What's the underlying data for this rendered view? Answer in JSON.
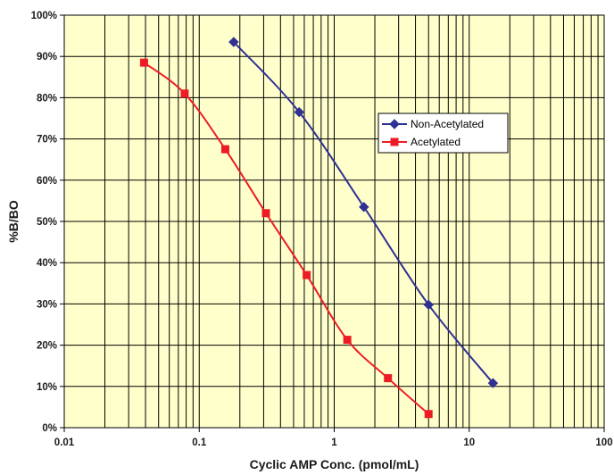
{
  "chart_data": {
    "type": "line",
    "title": "",
    "xlabel": "Cyclic AMP Conc. (pmol/mL)",
    "ylabel": "%B/BO",
    "x_scale": "log",
    "xlim": [
      0.01,
      100
    ],
    "ylim": [
      0,
      100
    ],
    "x_ticks": [
      0.01,
      0.1,
      1,
      10,
      100
    ],
    "x_tick_labels": [
      "0.01",
      "0.1",
      "1",
      "10",
      "100"
    ],
    "y_ticks": [
      0,
      10,
      20,
      30,
      40,
      50,
      60,
      70,
      80,
      90,
      100
    ],
    "y_tick_labels": [
      "0%",
      "10%",
      "20%",
      "30%",
      "40%",
      "50%",
      "60%",
      "70%",
      "80%",
      "90%",
      "100%"
    ],
    "grid": true,
    "background_color": "#FFFFCC",
    "legend_position": "upper-right",
    "series": [
      {
        "name": "Non-Acetylated",
        "color": "#2E3192",
        "marker": "diamond",
        "x": [
          0.18,
          0.55,
          1.66,
          5.0,
          15.0
        ],
        "y": [
          93.5,
          76.5,
          53.5,
          29.8,
          10.8
        ]
      },
      {
        "name": "Acetylated",
        "color": "#ED1C24",
        "marker": "square",
        "x": [
          0.039,
          0.078,
          0.156,
          0.312,
          0.625,
          1.25,
          2.5,
          5.0
        ],
        "y": [
          88.5,
          81.0,
          67.5,
          52.0,
          37.0,
          21.3,
          12.0,
          3.3
        ]
      }
    ]
  }
}
